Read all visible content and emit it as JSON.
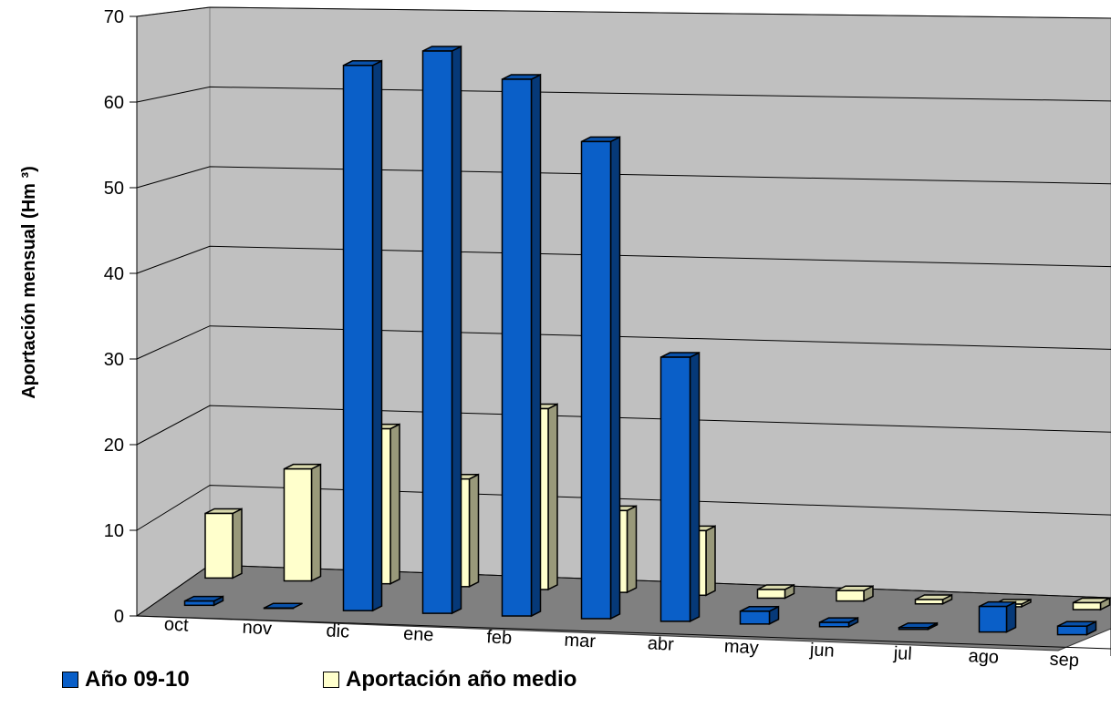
{
  "chart_data": {
    "type": "bar",
    "title": "",
    "xlabel": "",
    "ylabel": "Aportación mensual (Hm ³)",
    "ylim": [
      0,
      70
    ],
    "yticks": [
      "0",
      "10",
      "20",
      "30",
      "40",
      "50",
      "60",
      "70"
    ],
    "categories": [
      "oct",
      "nov",
      "dic",
      "ene",
      "feb",
      "mar",
      "abr",
      "may",
      "jun",
      "jul",
      "ago",
      "sep"
    ],
    "series": [
      {
        "name": "Año 09-10",
        "color": "#0a5fc8",
        "values": [
          0.5,
          0,
          64,
          66,
          63,
          56,
          31,
          1.5,
          0.5,
          0.2,
          3,
          1
        ]
      },
      {
        "name": "Aportación año medio",
        "color": "#ffffcc",
        "values": [
          7.5,
          13,
          18,
          12.5,
          21,
          9.5,
          7.5,
          1,
          1.2,
          0.5,
          0.3,
          0.8
        ]
      }
    ],
    "legend": "bottom",
    "grid": true
  }
}
